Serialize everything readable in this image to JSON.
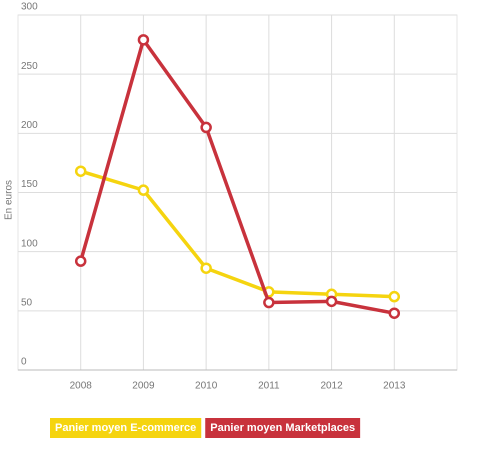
{
  "chart_data": {
    "type": "line",
    "y_label": "En euros",
    "x": [
      2008,
      2009,
      2010,
      2011,
      2012,
      2013
    ],
    "xlim": [
      2007,
      2014
    ],
    "xticks": [
      2008,
      2009,
      2010,
      2011,
      2012,
      2013
    ],
    "ylim": [
      0,
      300
    ],
    "yticks": [
      0,
      50,
      100,
      150,
      200,
      250,
      300
    ],
    "grid": true,
    "legend": "bottom",
    "series": [
      {
        "name": "Panier moyen E-commerce",
        "color": "#f5d40f",
        "values": [
          168,
          152,
          86,
          66,
          64,
          62
        ]
      },
      {
        "name": "Panier moyen Marketplaces",
        "color": "#c8323c",
        "values": [
          92,
          279,
          205,
          57,
          58,
          48
        ]
      }
    ]
  }
}
